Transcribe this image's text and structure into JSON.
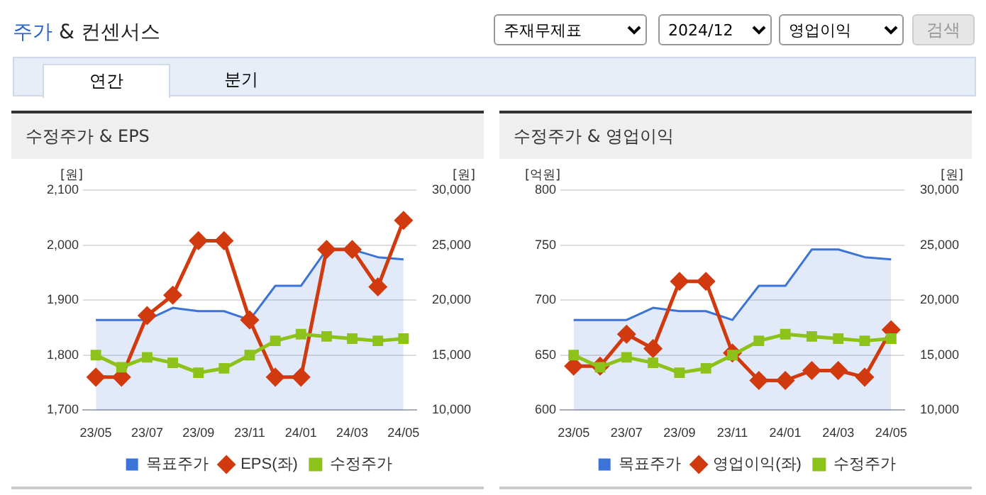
{
  "chart_data": [
    {
      "type": "other",
      "title": "주가 & 컨센서스",
      "annotations": [
        "주재무제표",
        "2024/12",
        "영업이익",
        "검색",
        "연간",
        "분기"
      ]
    },
    {
      "type": "line",
      "title": "수정주가 & EPS",
      "ylabel": "[원]",
      "y2label": "[원]",
      "categories": [
        "23/05",
        null,
        "23/07",
        null,
        "23/09",
        null,
        "23/11",
        null,
        "24/01",
        null,
        "24/03",
        null,
        "24/05"
      ],
      "series": [
        {
          "name": "목표주가",
          "type": "area",
          "axis": "y2",
          "color": "#3b73d6",
          "marker": "none",
          "values": [
            18200,
            18200,
            18200,
            19300,
            19000,
            19000,
            18200,
            21300,
            21300,
            24600,
            24600,
            23900,
            23700
          ]
        },
        {
          "name": "EPS(좌)",
          "type": "line",
          "color": "#d03a0e",
          "marker": "diamond",
          "values": [
            1760,
            1760,
            1872,
            1909,
            2008,
            2008,
            1864,
            1760,
            1760,
            1992,
            1992,
            1924,
            2045
          ]
        },
        {
          "name": "수정주가",
          "type": "line",
          "axis": "y2",
          "color": "#8cc21a",
          "marker": "square",
          "values": [
            15000,
            13900,
            14800,
            14300,
            13400,
            13800,
            15000,
            16300,
            16900,
            16700,
            16500,
            16300,
            16500
          ]
        }
      ],
      "ylim": [
        1700,
        2100
      ],
      "yticks": [
        {
          "value": 1700,
          "label": "1,700"
        },
        {
          "value": 1800,
          "label": "1,800"
        },
        {
          "value": 1900,
          "label": "1,900"
        },
        {
          "value": 2000,
          "label": "2,000"
        },
        {
          "value": 2100,
          "label": "2,100"
        }
      ],
      "y2lim": [
        10000,
        30000
      ],
      "y2ticks": [
        {
          "value": 10000,
          "label": "10,000"
        },
        {
          "value": 15000,
          "label": "15,000"
        },
        {
          "value": 20000,
          "label": "20,000"
        },
        {
          "value": 25000,
          "label": "25,000"
        },
        {
          "value": 30000,
          "label": "30,000"
        }
      ],
      "grid": "y",
      "legend": "bottom"
    },
    {
      "type": "line",
      "title": "수정주가 & 영업이익",
      "ylabel": "[억원]",
      "y2label": "[원]",
      "categories": [
        "23/05",
        null,
        "23/07",
        null,
        "23/09",
        null,
        "23/11",
        null,
        "24/01",
        null,
        "24/03",
        null,
        "24/05"
      ],
      "series": [
        {
          "name": "목표주가",
          "type": "area",
          "axis": "y2",
          "color": "#3b73d6",
          "marker": "none",
          "values": [
            18200,
            18200,
            18200,
            19300,
            19000,
            19000,
            18200,
            21300,
            21300,
            24600,
            24600,
            23900,
            23700
          ]
        },
        {
          "name": "영업이익(좌)",
          "type": "line",
          "color": "#d03a0e",
          "marker": "diamond",
          "values": [
            640,
            640,
            669,
            656,
            717,
            717,
            652,
            627,
            627,
            636,
            636,
            630,
            673
          ]
        },
        {
          "name": "수정주가",
          "type": "line",
          "axis": "y2",
          "color": "#8cc21a",
          "marker": "square",
          "values": [
            15000,
            13900,
            14800,
            14300,
            13400,
            13800,
            15000,
            16300,
            16900,
            16700,
            16500,
            16300,
            16500
          ]
        }
      ],
      "ylim": [
        600,
        800
      ],
      "yticks": [
        600,
        650,
        700,
        750,
        800
      ],
      "y2lim": [
        10000,
        30000
      ],
      "y2ticks": [
        {
          "value": 10000,
          "label": "10,000"
        },
        {
          "value": 15000,
          "label": "15,000"
        },
        {
          "value": 20000,
          "label": "20,000"
        },
        {
          "value": 25000,
          "label": "25,000"
        },
        {
          "value": 30000,
          "label": "30,000"
        }
      ],
      "grid": "y",
      "legend": "bottom"
    }
  ]
}
